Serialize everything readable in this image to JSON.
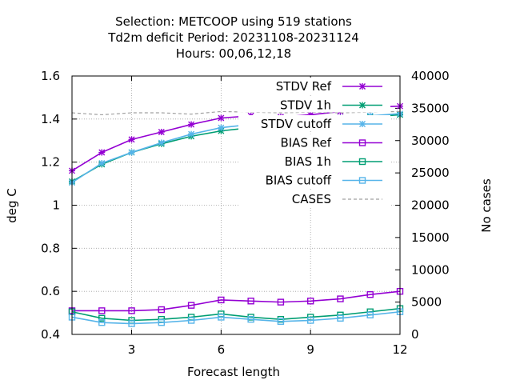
{
  "chart_data": {
    "type": "line",
    "title_lines": [
      "Selection: METCOOP using   519 stations",
      "Td2m deficit   Period: 20231108-20231124",
      "Hours:  00,06,12,18"
    ],
    "xlabel": "Forecast length",
    "ylabel": "deg C",
    "y2label": "No cases",
    "xlim": [
      1,
      12
    ],
    "ylim": [
      0.4,
      1.6
    ],
    "y2lim": [
      0,
      40000
    ],
    "xticks": [
      3,
      6,
      9,
      12
    ],
    "yticks": [
      0.4,
      0.6,
      0.8,
      1,
      1.2,
      1.4,
      1.6
    ],
    "ytick_labels": [
      "0.4",
      "0.6",
      "0.8",
      "1",
      "1.2",
      "1.4",
      "1.6"
    ],
    "y2ticks": [
      0,
      5000,
      10000,
      15000,
      20000,
      25000,
      30000,
      35000,
      40000
    ],
    "grid": true,
    "legend_position": "top-right",
    "x": [
      1,
      2,
      3,
      4,
      5,
      6,
      7,
      8,
      9,
      10,
      11,
      12
    ],
    "series": [
      {
        "name": "STDV Ref",
        "color": "#9400d3",
        "marker": "star",
        "axis": "y",
        "values": [
          1.16,
          1.245,
          1.305,
          1.34,
          1.375,
          1.405,
          1.415,
          1.41,
          1.42,
          1.435,
          1.455,
          1.46
        ]
      },
      {
        "name": "STDV 1h",
        "color": "#009e73",
        "marker": "star",
        "axis": "y",
        "values": [
          1.11,
          1.19,
          1.245,
          1.285,
          1.32,
          1.345,
          1.36,
          1.365,
          1.38,
          1.395,
          1.41,
          1.42
        ]
      },
      {
        "name": "STDV cutoff",
        "color": "#56b4e9",
        "marker": "star",
        "axis": "y",
        "values": [
          1.105,
          1.195,
          1.245,
          1.29,
          1.33,
          1.36,
          1.375,
          1.38,
          1.39,
          1.405,
          1.415,
          1.425
        ]
      },
      {
        "name": "BIAS Ref",
        "color": "#9400d3",
        "marker": "square",
        "axis": "y",
        "values": [
          0.51,
          0.51,
          0.51,
          0.515,
          0.535,
          0.56,
          0.555,
          0.55,
          0.555,
          0.565,
          0.585,
          0.6
        ]
      },
      {
        "name": "BIAS 1h",
        "color": "#009e73",
        "marker": "square",
        "axis": "y",
        "values": [
          0.505,
          0.475,
          0.465,
          0.47,
          0.48,
          0.495,
          0.48,
          0.47,
          0.48,
          0.49,
          0.505,
          0.52
        ]
      },
      {
        "name": "BIAS cutoff",
        "color": "#56b4e9",
        "marker": "square",
        "axis": "y",
        "values": [
          0.48,
          0.455,
          0.45,
          0.455,
          0.465,
          0.48,
          0.47,
          0.46,
          0.465,
          0.475,
          0.49,
          0.505
        ]
      },
      {
        "name": "CASES",
        "color": "#a0a0a0",
        "marker": "none",
        "dashed": true,
        "axis": "y2",
        "values": [
          34300,
          34000,
          34300,
          34300,
          34100,
          34500,
          34400,
          34300,
          34400,
          34300,
          34400,
          34500
        ]
      }
    ]
  }
}
